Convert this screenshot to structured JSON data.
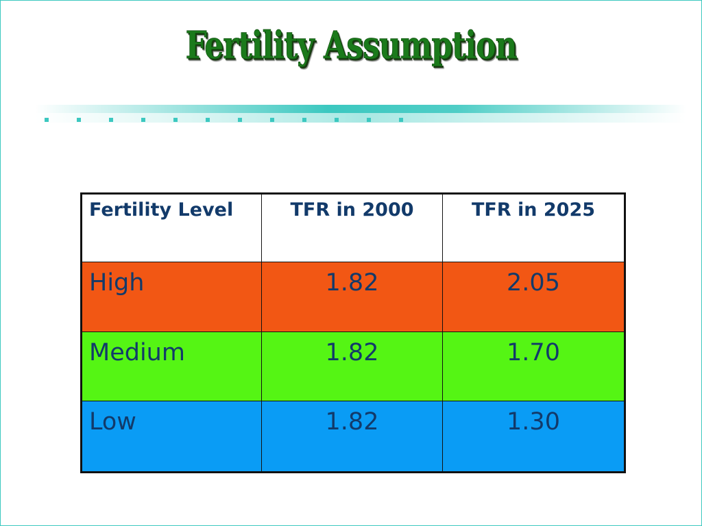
{
  "slide": {
    "title": "Fertility Assumption"
  },
  "table": {
    "headers": [
      "Fertility Level",
      "TFR in 2000",
      "TFR in 2025"
    ],
    "rows": [
      {
        "level": "High",
        "tfr_2000": "1.82",
        "tfr_2025": "2.05"
      },
      {
        "level": "Medium",
        "tfr_2000": "1.82",
        "tfr_2025": "1.70"
      },
      {
        "level": "Low",
        "tfr_2000": "1.82",
        "tfr_2025": "1.30"
      }
    ]
  },
  "colors": {
    "title": "#1b7a1b",
    "frame": "#3cc8c0",
    "band": "#3cc8c0",
    "header_text": "#123a6a",
    "high_row": "#f25714",
    "medium_row": "#55f514",
    "low_row": "#0a9cf5"
  }
}
